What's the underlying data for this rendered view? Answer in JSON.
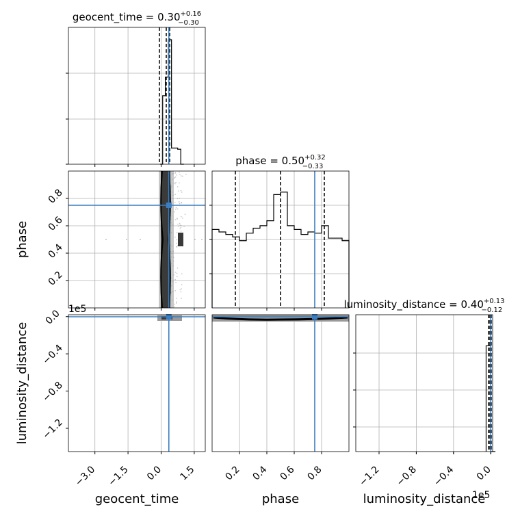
{
  "chart_data": {
    "type": "corner",
    "truth_color": "#3b7dbf",
    "parameters": [
      {
        "name": "geocent_time",
        "axis_label": "geocent_time",
        "title": {
          "base": "geocent_time = 0.30",
          "plus": "+0.16",
          "minus": "−0.30"
        },
        "range": [
          -4.2,
          2.0
        ],
        "ticks": [
          {
            "v": -3.0,
            "label": "−3.0"
          },
          {
            "v": -1.5,
            "label": "−1.5"
          },
          {
            "v": 0.0,
            "label": "0.0"
          },
          {
            "v": 1.5,
            "label": "1.5"
          }
        ],
        "quantiles": [
          0.0,
          0.3,
          0.46
        ],
        "truth": 0.35,
        "hist": {
          "edges": [
            -0.05,
            0.07,
            0.19,
            0.33,
            0.47,
            0.61,
            0.75,
            0.89,
            1.03
          ],
          "counts": [
            0.0,
            0.55,
            0.7,
            1.0,
            0.13,
            0.13,
            0.12,
            0.0
          ],
          "ymax": 1.0
        }
      },
      {
        "name": "phase",
        "axis_label": "phase",
        "title": {
          "base": "phase = 0.50",
          "plus": "+0.32",
          "minus": "−0.33"
        },
        "range": [
          0.0,
          1.0
        ],
        "ticks": [
          {
            "v": 0.2,
            "label": "0.2"
          },
          {
            "v": 0.4,
            "label": "0.4"
          },
          {
            "v": 0.6,
            "label": "0.6"
          },
          {
            "v": 0.8,
            "label": "0.8"
          }
        ],
        "quantiles": [
          0.17,
          0.5,
          0.82
        ],
        "truth": 0.75,
        "hist": {
          "edges": [
            0.0,
            0.05,
            0.1,
            0.15,
            0.2,
            0.25,
            0.3,
            0.35,
            0.4,
            0.45,
            0.5,
            0.55,
            0.6,
            0.65,
            0.7,
            0.75,
            0.8,
            0.85,
            0.9,
            0.95,
            1.0
          ],
          "counts": [
            0.63,
            0.61,
            0.59,
            0.57,
            0.54,
            0.6,
            0.64,
            0.66,
            0.7,
            0.91,
            0.93,
            0.66,
            0.63,
            0.59,
            0.61,
            0.6,
            0.66,
            0.56,
            0.56,
            0.54
          ],
          "ymax": 1.0
        }
      },
      {
        "name": "luminosity_distance",
        "axis_label": "luminosity_distance",
        "title": {
          "base": "luminosity_distance = 0.40",
          "plus": "+0.13",
          "minus": "−0.12"
        },
        "range": [
          -145000,
          2000
        ],
        "offset_label": "1e5",
        "ticks": [
          {
            "v": -120000,
            "label": "−1.2"
          },
          {
            "v": -80000,
            "label": "−0.8"
          },
          {
            "v": -40000,
            "label": "−0.4"
          },
          {
            "v": 0,
            "label": "0.0"
          }
        ],
        "quantiles": [
          0.28,
          0.4,
          0.53
        ],
        "truth": 0.4,
        "hist": {
          "edges": [
            -5000,
            0,
            5000
          ],
          "counts": [
            0.85,
            0.0
          ],
          "ymax": 1.0
        }
      }
    ],
    "ytick_labels_phase": [
      "0.2",
      "0.4",
      "0.6",
      "0.8"
    ],
    "ytick_labels_ld": [
      "−1.2",
      "−0.8",
      "−0.4",
      "0.0"
    ],
    "ld_offset_label_y": "1e5"
  }
}
